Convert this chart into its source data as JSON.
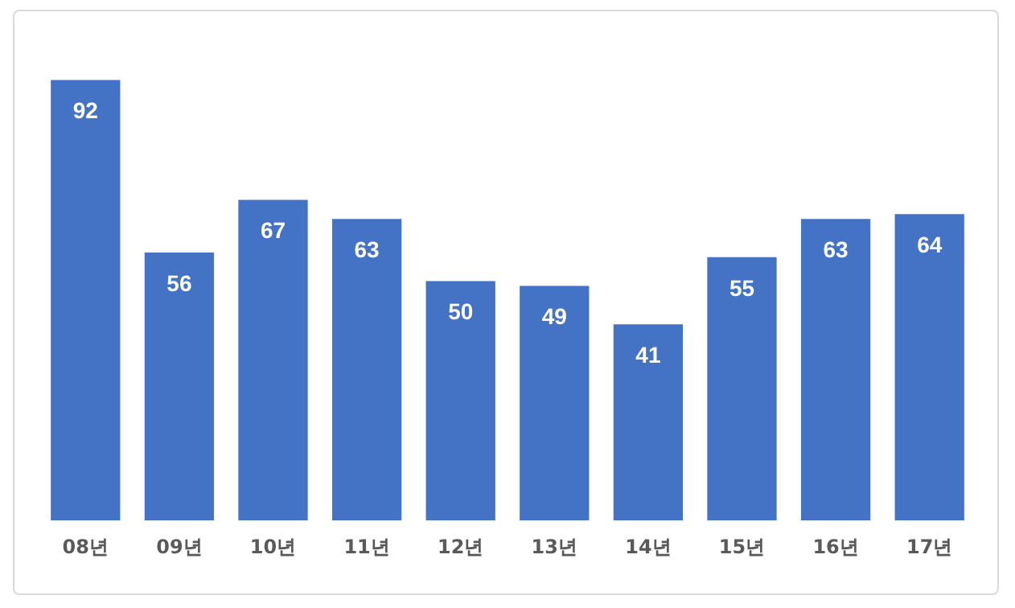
{
  "chart_data": {
    "type": "bar",
    "categories": [
      "08년",
      "09년",
      "10년",
      "11년",
      "12년",
      "13년",
      "14년",
      "15년",
      "16년",
      "17년"
    ],
    "values": [
      92,
      56,
      67,
      63,
      50,
      49,
      41,
      55,
      63,
      64
    ],
    "color": "#4472c4",
    "data_labels": true,
    "grid": false,
    "legend": false
  }
}
